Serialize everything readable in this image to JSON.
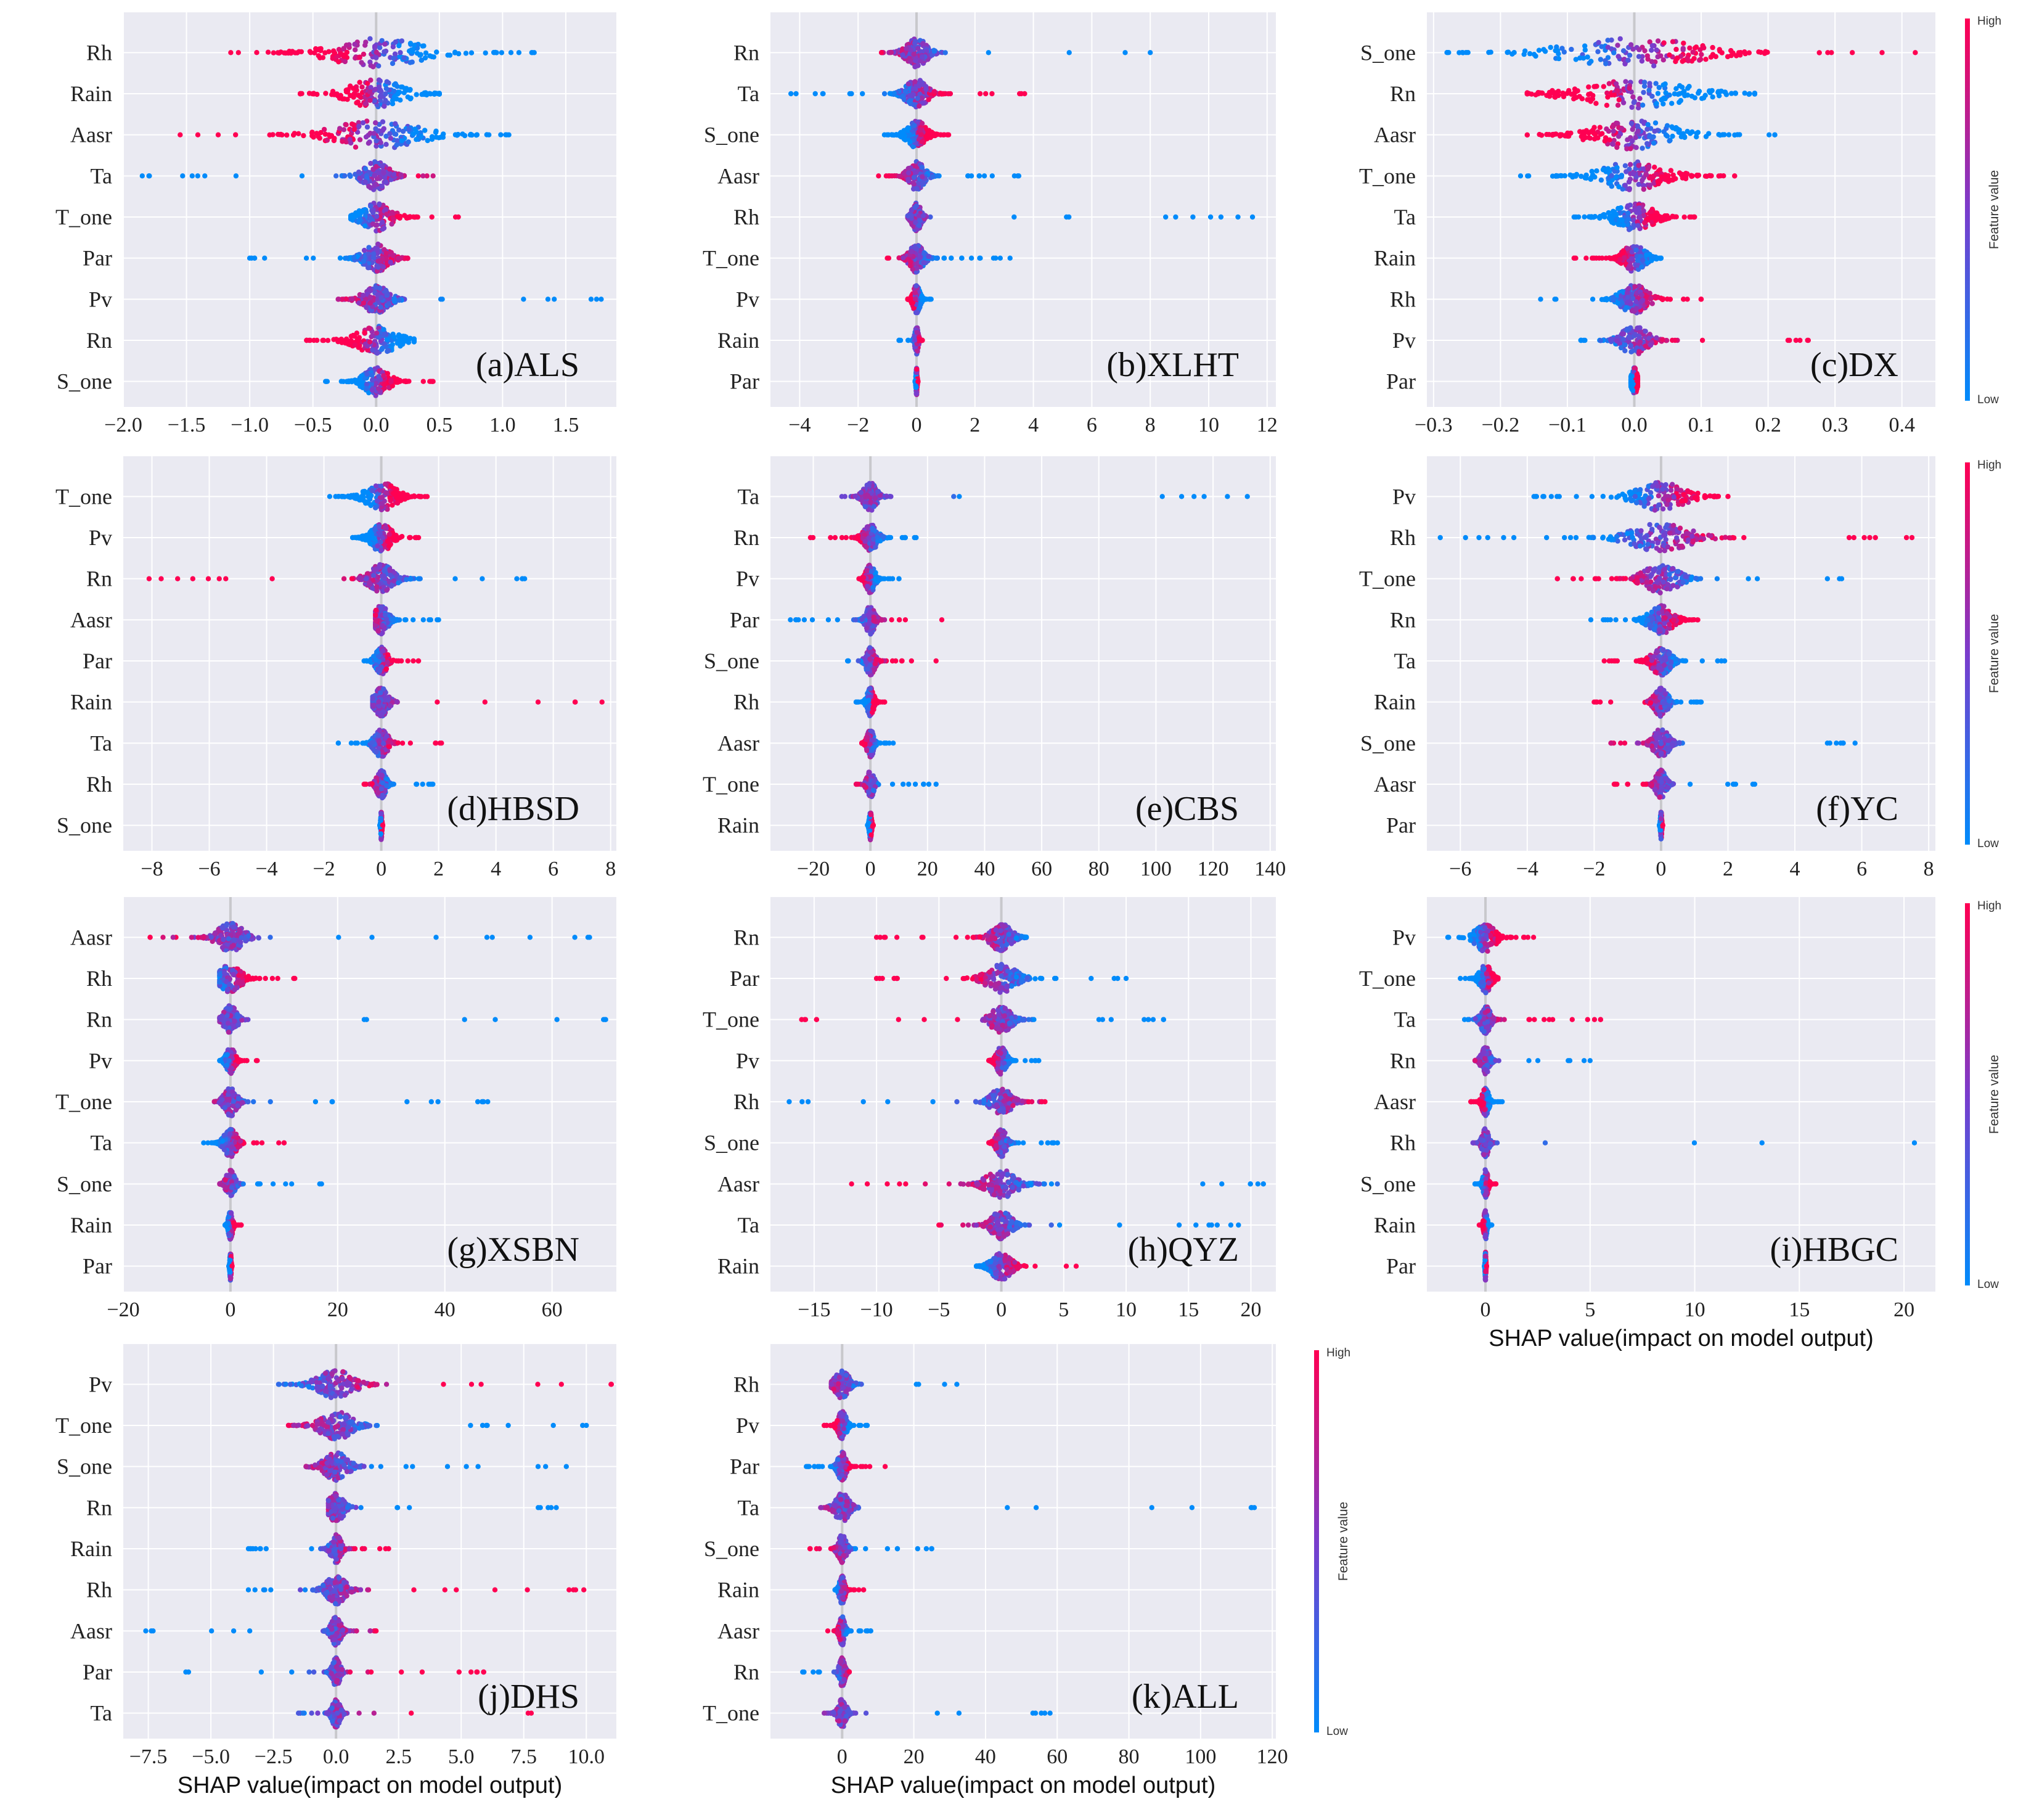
{
  "figure": {
    "xlabel": "SHAP value(impact on model output)",
    "colorbar_high": "High",
    "colorbar_low": "Low",
    "colorbar_label": "Feature value",
    "colors": {
      "high": "#ff0052",
      "low": "#008bfb",
      "mid": "#7a3ccc",
      "panel_bg": "#eaeaf2",
      "grid": "#ffffff",
      "zero_line": "#c8c8cc"
    }
  },
  "chart_data": [
    {
      "type": "scatter",
      "subtype": "shap_beeswarm",
      "title": "(a)ALS",
      "features": [
        "Rh",
        "Rain",
        "Aasr",
        "Ta",
        "T_one",
        "Par",
        "Pv",
        "Rn",
        "S_one"
      ],
      "xlim": [
        -2.0,
        1.9
      ],
      "xticks": [
        -2.0,
        -1.5,
        -1.0,
        -0.5,
        0.0,
        0.5,
        1.0,
        1.5
      ],
      "xtick_labels": [
        "−2.0",
        "−1.5",
        "−1.0",
        "−0.5",
        "0.0",
        "0.5",
        "1.0",
        "1.5"
      ],
      "shap_range": [
        [
          -1.15,
          1.25
        ],
        [
          -0.6,
          0.5
        ],
        [
          -1.55,
          1.05
        ],
        [
          -1.85,
          0.45
        ],
        [
          -0.2,
          0.65
        ],
        [
          -1.0,
          0.25
        ],
        [
          -0.3,
          1.78
        ],
        [
          -0.55,
          0.3
        ],
        [
          -0.4,
          0.45
        ]
      ],
      "core_width": [
        0.9,
        0.55,
        0.85,
        0.25,
        0.3,
        0.25,
        0.25,
        0.4,
        0.25
      ],
      "low_side": [
        "right",
        "right",
        "right",
        "left",
        "left",
        "left",
        "right",
        "right",
        "left"
      ],
      "show_xlabel": false,
      "colorbar": false
    },
    {
      "type": "scatter",
      "subtype": "shap_beeswarm",
      "title": "(b)XLHT",
      "features": [
        "Rn",
        "Ta",
        "S_one",
        "Aasr",
        "Rh",
        "T_one",
        "Pv",
        "Rain",
        "Par"
      ],
      "xlim": [
        -5,
        12.3
      ],
      "xticks": [
        -4,
        -2,
        0,
        2,
        4,
        6,
        8,
        10,
        12
      ],
      "xtick_labels": [
        "−4",
        "−2",
        "0",
        "2",
        "4",
        "6",
        "8",
        "10",
        "12"
      ],
      "shap_range": [
        [
          -1.2,
          8.0
        ],
        [
          -4.3,
          3.7
        ],
        [
          -1.1,
          1.1
        ],
        [
          -1.3,
          3.5
        ],
        [
          -0.3,
          11.5
        ],
        [
          -1.0,
          3.2
        ],
        [
          -0.3,
          0.5
        ],
        [
          -0.6,
          0.2
        ],
        [
          -0.05,
          0.05
        ]
      ],
      "core_width": [
        0.9,
        0.9,
        0.8,
        0.7,
        0.4,
        0.6,
        0.3,
        0.15,
        0.05
      ],
      "low_side": [
        "right",
        "left",
        "left",
        "right",
        "right",
        "right",
        "right",
        "left",
        "left"
      ],
      "show_xlabel": false,
      "colorbar": false
    },
    {
      "type": "scatter",
      "subtype": "shap_beeswarm",
      "title": "(c)DX",
      "features": [
        "S_one",
        "Rn",
        "Aasr",
        "T_one",
        "Ta",
        "Rain",
        "Rh",
        "Pv",
        "Par"
      ],
      "xlim": [
        -0.31,
        0.45
      ],
      "xticks": [
        -0.3,
        -0.2,
        -0.1,
        0.0,
        0.1,
        0.2,
        0.3,
        0.4
      ],
      "xtick_labels": [
        "−0.3",
        "−0.2",
        "−0.1",
        "0.0",
        "0.1",
        "0.2",
        "0.3",
        "0.4"
      ],
      "shap_range": [
        [
          -0.28,
          0.42
        ],
        [
          -0.16,
          0.18
        ],
        [
          -0.16,
          0.21
        ],
        [
          -0.17,
          0.15
        ],
        [
          -0.09,
          0.09
        ],
        [
          -0.09,
          0.04
        ],
        [
          -0.14,
          0.1
        ],
        [
          -0.08,
          0.26
        ],
        [
          -0.005,
          0.005
        ]
      ],
      "core_width": [
        0.25,
        0.2,
        0.15,
        0.12,
        0.07,
        0.04,
        0.05,
        0.05,
        0.01
      ],
      "low_side": [
        "left",
        "right",
        "right",
        "left",
        "left",
        "right",
        "left",
        "left",
        "left"
      ],
      "show_xlabel": false,
      "colorbar": true
    },
    {
      "type": "scatter",
      "subtype": "shap_beeswarm",
      "title": "(d)HBSD",
      "features": [
        "T_one",
        "Pv",
        "Rn",
        "Aasr",
        "Par",
        "Rain",
        "Ta",
        "Rh",
        "S_one"
      ],
      "xlim": [
        -9,
        8.2
      ],
      "xticks": [
        -8,
        -6,
        -4,
        -2,
        0,
        2,
        4,
        6,
        8
      ],
      "xtick_labels": [
        "−8",
        "−6",
        "−4",
        "−2",
        "0",
        "2",
        "4",
        "6",
        "8"
      ],
      "shap_range": [
        [
          -1.8,
          1.6
        ],
        [
          -1.0,
          1.3
        ],
        [
          -8.1,
          5.0
        ],
        [
          -0.2,
          2.0
        ],
        [
          -0.6,
          1.3
        ],
        [
          -0.3,
          7.7
        ],
        [
          -1.5,
          2.1
        ],
        [
          -0.6,
          1.8
        ],
        [
          -0.05,
          0.05
        ]
      ],
      "core_width": [
        1.3,
        0.9,
        1.1,
        0.6,
        0.5,
        0.6,
        0.6,
        0.4,
        0.05
      ],
      "low_side": [
        "left",
        "left",
        "right",
        "right",
        "left",
        "left",
        "left",
        "right",
        "left"
      ],
      "show_xlabel": false,
      "colorbar": false
    },
    {
      "type": "scatter",
      "subtype": "shap_beeswarm",
      "title": "(e)CBS",
      "features": [
        "Ta",
        "Rn",
        "Pv",
        "Par",
        "S_one",
        "Rh",
        "Aasr",
        "T_one",
        "Rain"
      ],
      "xlim": [
        -35,
        142
      ],
      "xticks": [
        -20,
        0,
        20,
        40,
        60,
        80,
        100,
        120,
        140
      ],
      "xtick_labels": [
        "−20",
        "0",
        "20",
        "40",
        "60",
        "80",
        "100",
        "120",
        "140"
      ],
      "shap_range": [
        [
          -10,
          132
        ],
        [
          -21,
          16
        ],
        [
          -4,
          10
        ],
        [
          -28,
          25
        ],
        [
          -8,
          23
        ],
        [
          -5,
          5
        ],
        [
          -3,
          8
        ],
        [
          -5,
          23
        ],
        [
          -1,
          1
        ]
      ],
      "core_width": [
        6,
        6,
        4,
        4,
        4,
        3,
        3,
        3,
        1
      ],
      "low_side": [
        "right",
        "right",
        "right",
        "left",
        "left",
        "left",
        "right",
        "right",
        "left"
      ],
      "show_xlabel": false,
      "colorbar": false
    },
    {
      "type": "scatter",
      "subtype": "shap_beeswarm",
      "title": "(f)YC",
      "features": [
        "Pv",
        "Rh",
        "T_one",
        "Rn",
        "Ta",
        "Rain",
        "S_one",
        "Aasr",
        "Par"
      ],
      "xlim": [
        -7,
        8.2
      ],
      "xticks": [
        -6,
        -4,
        -2,
        0,
        2,
        4,
        6,
        8
      ],
      "xtick_labels": [
        "−6",
        "−4",
        "−2",
        "0",
        "2",
        "4",
        "6",
        "8"
      ],
      "shap_range": [
        [
          -3.8,
          2.0
        ],
        [
          -6.6,
          7.5
        ],
        [
          -3.1,
          5.4
        ],
        [
          -2.1,
          1.1
        ],
        [
          -1.7,
          1.9
        ],
        [
          -2.0,
          1.2
        ],
        [
          -1.5,
          5.8
        ],
        [
          -1.4,
          2.8
        ],
        [
          -0.05,
          0.05
        ]
      ],
      "core_width": [
        1.8,
        2.2,
        1.3,
        0.9,
        0.7,
        0.5,
        0.6,
        0.4,
        0.05
      ],
      "low_side": [
        "left",
        "left",
        "right",
        "left",
        "right",
        "right",
        "right",
        "right",
        "left"
      ],
      "show_xlabel": false,
      "colorbar": true
    },
    {
      "type": "scatter",
      "subtype": "shap_beeswarm",
      "title": "(g)XSBN",
      "features": [
        "Aasr",
        "Rh",
        "Rn",
        "Pv",
        "T_one",
        "Ta",
        "S_one",
        "Rain",
        "Par"
      ],
      "xlim": [
        -20,
        72
      ],
      "xticks": [
        -20,
        0,
        20,
        40,
        60
      ],
      "xtick_labels": [
        "−20",
        "0",
        "20",
        "40",
        "60"
      ],
      "shap_range": [
        [
          -15,
          67
        ],
        [
          -2,
          12
        ],
        [
          -2,
          70
        ],
        [
          -2,
          5
        ],
        [
          -3,
          48
        ],
        [
          -5,
          10
        ],
        [
          -2,
          17
        ],
        [
          -1,
          2
        ],
        [
          -0.3,
          0.3
        ]
      ],
      "core_width": [
        6,
        5,
        3,
        2,
        3,
        3,
        2,
        1,
        0.3
      ],
      "low_side": [
        "right",
        "left",
        "right",
        "left",
        "right",
        "left",
        "right",
        "left",
        "left"
      ],
      "show_xlabel": false,
      "colorbar": false
    },
    {
      "type": "scatter",
      "subtype": "shap_beeswarm",
      "title": "(h)QYZ",
      "features": [
        "Rn",
        "Par",
        "T_one",
        "Pv",
        "Rh",
        "S_one",
        "Aasr",
        "Ta",
        "Rain"
      ],
      "xlim": [
        -18.5,
        22
      ],
      "xticks": [
        -15,
        -10,
        -5,
        0,
        5,
        10,
        15,
        20
      ],
      "xtick_labels": [
        "−15",
        "−10",
        "−5",
        "0",
        "5",
        "10",
        "15",
        "20"
      ],
      "shap_range": [
        [
          -10,
          2
        ],
        [
          -10,
          10
        ],
        [
          -16,
          13
        ],
        [
          -1,
          3
        ],
        [
          -17,
          3.5
        ],
        [
          -1,
          4.5
        ],
        [
          -12,
          21
        ],
        [
          -5,
          19
        ],
        [
          -2,
          6
        ]
      ],
      "core_width": [
        2,
        3,
        2,
        1,
        2,
        1,
        3,
        2,
        2
      ],
      "low_side": [
        "right",
        "right",
        "right",
        "right",
        "left",
        "right",
        "right",
        "right",
        "left"
      ],
      "show_xlabel": false,
      "colorbar": false
    },
    {
      "type": "scatter",
      "subtype": "shap_beeswarm",
      "title": "(i)HBGC",
      "features": [
        "Pv",
        "T_one",
        "Ta",
        "Rn",
        "Aasr",
        "Rh",
        "S_one",
        "Rain",
        "Par"
      ],
      "xlim": [
        -2.8,
        21.5
      ],
      "xticks": [
        0,
        5,
        10,
        15,
        20
      ],
      "xtick_labels": [
        "0",
        "5",
        "10",
        "15",
        "20"
      ],
      "shap_range": [
        [
          -1.8,
          2.3
        ],
        [
          -1.2,
          0.6
        ],
        [
          -1.0,
          5.5
        ],
        [
          -0.5,
          5.0
        ],
        [
          -0.7,
          0.8
        ],
        [
          -0.6,
          20.5
        ],
        [
          -0.5,
          0.5
        ],
        [
          -0.3,
          0.3
        ],
        [
          -0.05,
          0.05
        ]
      ],
      "core_width": [
        1.2,
        0.7,
        0.6,
        0.5,
        0.4,
        0.4,
        0.3,
        0.2,
        0.05
      ],
      "low_side": [
        "left",
        "left",
        "left",
        "right",
        "right",
        "right",
        "left",
        "right",
        "left"
      ],
      "show_xlabel": true,
      "colorbar": true
    },
    {
      "type": "scatter",
      "subtype": "shap_beeswarm",
      "title": "(j)DHS",
      "features": [
        "Pv",
        "T_one",
        "S_one",
        "Rn",
        "Rain",
        "Rh",
        "Aasr",
        "Par",
        "Ta"
      ],
      "xlim": [
        -8.5,
        11.2
      ],
      "xticks": [
        -7.5,
        -5.0,
        -2.5,
        0.0,
        2.5,
        5.0,
        7.5,
        10.0
      ],
      "xtick_labels": [
        "−7.5",
        "−5.0",
        "−2.5",
        "0.0",
        "2.5",
        "5.0",
        "7.5",
        "10.0"
      ],
      "shap_range": [
        [
          -2.3,
          11.0
        ],
        [
          -1.9,
          10.0
        ],
        [
          -1.2,
          9.2
        ],
        [
          -0.3,
          8.8
        ],
        [
          -3.5,
          2.1
        ],
        [
          -3.5,
          9.9
        ],
        [
          -7.6,
          1.6
        ],
        [
          -6.0,
          5.9
        ],
        [
          -1.5,
          7.8
        ]
      ],
      "core_width": [
        1.8,
        1.6,
        1.2,
        0.8,
        0.5,
        1.0,
        0.5,
        0.4,
        0.4
      ],
      "low_side": [
        "left",
        "right",
        "right",
        "right",
        "left",
        "left",
        "left",
        "left",
        "left"
      ],
      "show_xlabel": true,
      "colorbar": false
    },
    {
      "type": "scatter",
      "subtype": "shap_beeswarm",
      "title": "(k)ALL",
      "features": [
        "Rh",
        "Pv",
        "Par",
        "Ta",
        "S_one",
        "Rain",
        "Aasr",
        "Rn",
        "T_one"
      ],
      "xlim": [
        -20,
        121
      ],
      "xticks": [
        0,
        20,
        40,
        60,
        80,
        100,
        120
      ],
      "xtick_labels": [
        "0",
        "20",
        "40",
        "60",
        "80",
        "100",
        "120"
      ],
      "shap_range": [
        [
          -3,
          32
        ],
        [
          -5,
          7
        ],
        [
          -10,
          12
        ],
        [
          -6,
          115
        ],
        [
          -9,
          25
        ],
        [
          -2,
          6
        ],
        [
          -4,
          8
        ],
        [
          -11,
          2
        ],
        [
          -5,
          58
        ]
      ],
      "core_width": [
        5,
        3,
        3,
        5,
        3,
        2,
        2,
        2,
        3
      ],
      "low_side": [
        "right",
        "right",
        "left",
        "right",
        "right",
        "left",
        "right",
        "left",
        "right"
      ],
      "show_xlabel": true,
      "colorbar": true
    }
  ]
}
